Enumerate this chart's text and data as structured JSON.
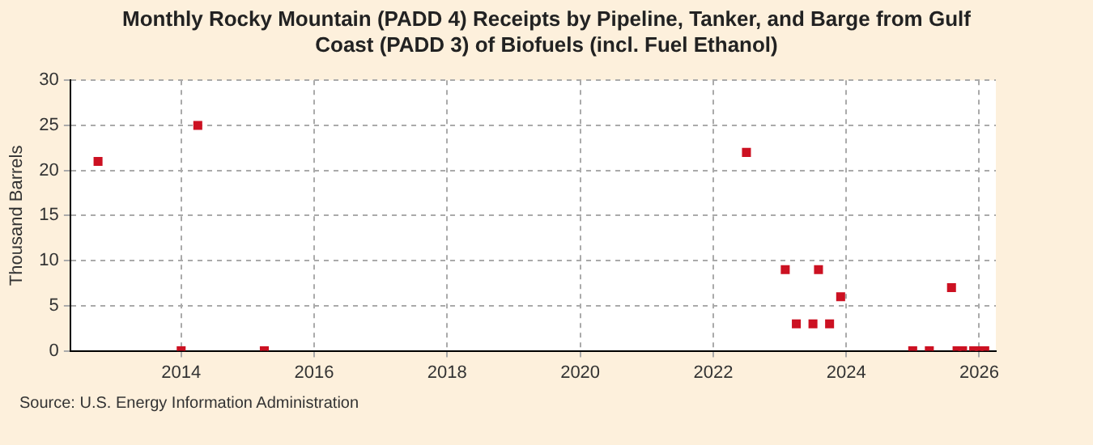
{
  "chart_data": {
    "type": "scatter",
    "title": "Monthly Rocky Mountain (PADD 4) Receipts by Pipeline, Tanker, and Barge from Gulf Coast (PADD 3) of Biofuels (incl. Fuel Ethanol)",
    "ylabel": "Thousand Barrels",
    "x": [
      "2012-10",
      "2014-01",
      "2014-04",
      "2015-04",
      "2022-07",
      "2023-02",
      "2023-04",
      "2023-07",
      "2023-08",
      "2023-10",
      "2023-12",
      "2025-01",
      "2025-04",
      "2025-08",
      "2025-09",
      "2025-10",
      "2025-12",
      "2026-01",
      "2026-02"
    ],
    "series": [
      {
        "color": "#cc1122",
        "values": [
          21,
          0,
          25,
          0,
          22,
          9,
          3,
          3,
          9,
          3,
          6,
          0,
          0,
          7,
          0,
          0,
          0,
          0,
          0
        ]
      }
    ],
    "xlim": [
      "2012-05",
      "2026-04"
    ],
    "xticks": [
      "2014",
      "2016",
      "2018",
      "2020",
      "2022",
      "2024",
      "2026"
    ],
    "ylim": [
      0,
      30
    ],
    "yticks": [
      0,
      5,
      10,
      15,
      20,
      25,
      30
    ],
    "grid": true,
    "marker": "square",
    "legend": false,
    "annotations": [
      "Source: U.S. Energy Information Administration"
    ]
  }
}
